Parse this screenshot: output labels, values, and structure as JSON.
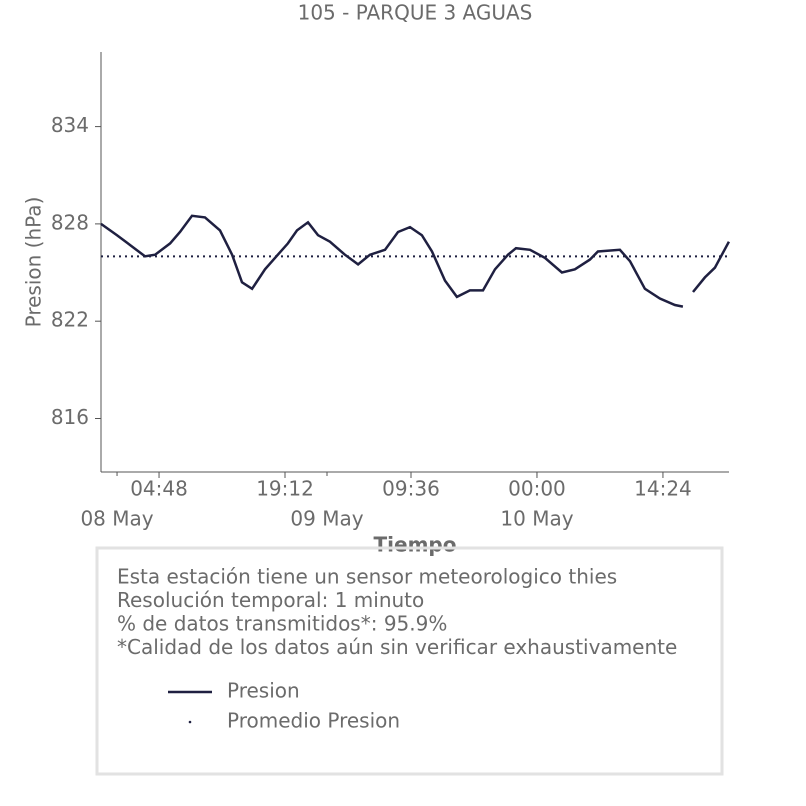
{
  "chart_data": {
    "type": "line",
    "title": "105 - PARQUE 3 AGUAS",
    "ylabel": "Presion (hPa)",
    "xlabel": "Tiempo",
    "x": [
      "07 May 22:10",
      "08 May 00:00",
      "08 May 01:29",
      "08 May 03:12",
      "08 May 04:21",
      "08 May 06:04",
      "08 May 07:12",
      "08 May 08:34",
      "08 May 10:03",
      "08 May 11:46",
      "08 May 13:09",
      "08 May 14:17",
      "08 May 15:26",
      "08 May 16:55",
      "08 May 18:03",
      "08 May 19:32",
      "08 May 20:34",
      "08 May 21:50",
      "08 May 22:58",
      "09 May 00:20",
      "09 May 02:03",
      "09 May 03:33",
      "09 May 04:55",
      "09 May 06:38",
      "09 May 08:07",
      "09 May 09:29",
      "09 May 10:51",
      "09 May 12:00",
      "09 May 13:29",
      "09 May 14:51",
      "09 May 16:20",
      "09 May 17:50",
      "09 May 19:12",
      "09 May 20:41",
      "09 May 21:36",
      "09 May 23:12",
      "10 May 00:55",
      "10 May 02:51",
      "10 May 04:20",
      "10 May 06:03",
      "10 May 06:58",
      "10 May 09:29",
      "10 May 10:38",
      "10 May 12:20",
      "10 May 14:03",
      "10 May 15:46",
      "10 May 16:41",
      "10 May 17:20",
      "10 May 17:50",
      "10 May 19:12",
      "10 May 20:20",
      "10 May 21:08",
      "10 May 21:56"
    ],
    "series": [
      {
        "name": "Presion",
        "color": "#1f2041",
        "values": [
          828.0,
          827.3,
          826.7,
          826.0,
          826.1,
          826.8,
          827.5,
          828.5,
          828.4,
          827.6,
          826.1,
          824.4,
          824.0,
          825.2,
          825.9,
          826.8,
          827.6,
          828.1,
          827.3,
          826.9,
          826.1,
          825.5,
          826.1,
          826.4,
          827.5,
          827.8,
          827.3,
          826.3,
          824.5,
          823.5,
          823.9,
          823.9,
          825.2,
          826.1,
          826.5,
          826.4,
          825.9,
          825.0,
          825.2,
          825.8,
          826.3,
          826.4,
          825.7,
          824.0,
          823.4,
          823.0,
          822.9,
          null,
          823.8,
          824.7,
          825.3,
          826.1,
          826.9
        ]
      },
      {
        "name": "Promedio Presion",
        "color": "#1f2041",
        "mean": 826.0
      }
    ],
    "xlim": [
      "07 May 22:10",
      "10 May 21:57"
    ],
    "ylim": [
      812.7,
      838.6
    ],
    "yticks": [
      816,
      822,
      828,
      834
    ],
    "xticks": [
      {
        "value": "08 May 04:48",
        "label": "04:48"
      },
      {
        "value": "08 May 19:12",
        "label": "19:12"
      },
      {
        "value": "09 May 09:36",
        "label": "09:36"
      },
      {
        "value": "10 May 00:00",
        "label": "00:00"
      },
      {
        "value": "10 May 14:24",
        "label": "14:24"
      }
    ],
    "xticks_minor": [
      {
        "value": "08 May 00:00",
        "label": "08 May"
      },
      {
        "value": "09 May 00:00",
        "label": "09 May"
      },
      {
        "value": "10 May 00:00",
        "label": "10 May"
      }
    ],
    "info": [
      "Esta estación tiene un sensor meteorologico thies",
      "Resolución temporal: 1 minuto",
      "% de datos transmitidos*: 95.9%",
      "*Calidad de los datos aún sin verificar exhaustivamente"
    ]
  }
}
